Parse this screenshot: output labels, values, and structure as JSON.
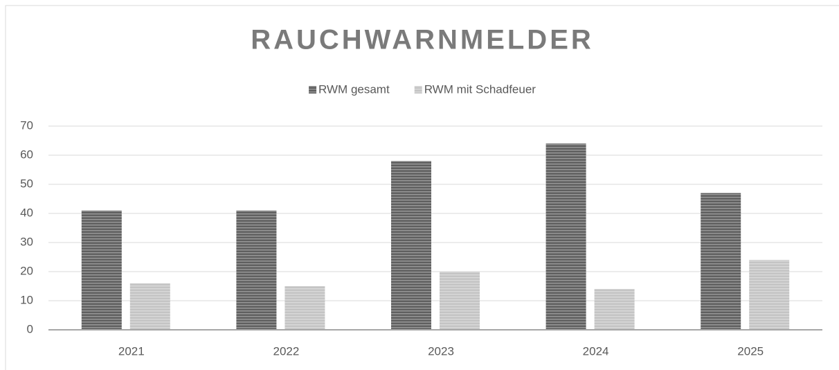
{
  "chart_data": {
    "type": "bar",
    "title": "RAUCHWARNMELDER",
    "categories": [
      "2021",
      "2022",
      "2023",
      "2024",
      "2025"
    ],
    "series": [
      {
        "name": "RWM gesamt",
        "color": "#5f5f5f",
        "values": [
          41,
          41,
          58,
          64,
          47
        ]
      },
      {
        "name": "RWM mit Schadfeuer",
        "color": "#c4c4c4",
        "values": [
          16,
          15,
          20,
          14,
          24
        ]
      }
    ],
    "ylim": [
      0,
      70
    ],
    "yticks": [
      0,
      10,
      20,
      30,
      40,
      50,
      60,
      70
    ],
    "grid": true,
    "legend": "top"
  }
}
